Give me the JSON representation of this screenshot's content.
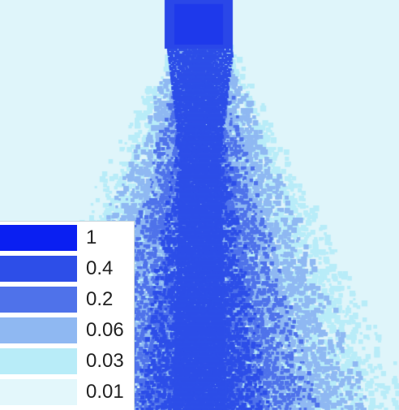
{
  "figure": {
    "background_color": "#dff5fa",
    "nozzle_color": "#2a47e8",
    "level_colors": [
      "#0a1ff2",
      "#2d4ee8",
      "#4f72ea",
      "#8fb8f2",
      "#b8ecf8",
      "#dff5fa"
    ]
  },
  "legend": {
    "items": [
      {
        "label": "1",
        "color": "#0a1ff2"
      },
      {
        "label": "0.4",
        "color": "#2d4ee8"
      },
      {
        "label": "0.2",
        "color": "#4f72ea"
      },
      {
        "label": "0.06",
        "color": "#8fb8f2"
      },
      {
        "label": "0.03",
        "color": "#b8ecf8"
      },
      {
        "label": "0.01",
        "color": "#e3f7fb"
      }
    ]
  }
}
